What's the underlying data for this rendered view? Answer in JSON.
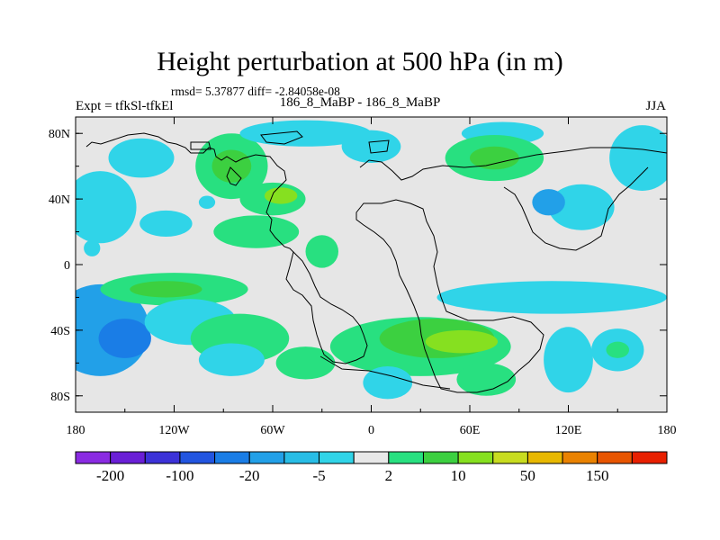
{
  "chart_data": {
    "type": "heatmap",
    "title": "Height perturbation at 500 hPa (in m)",
    "stats_text": "rmsd= 5.37877 diff= -2.84058e-08",
    "subtitle_left": "Expt = tfkSl-tfkEl",
    "subtitle_center": "186_8_MaBP - 186_8_MaBP",
    "subtitle_right": "JJA",
    "xlim": [
      -180,
      180
    ],
    "ylim": [
      -90,
      90
    ],
    "x_ticks": [
      {
        "value": -180,
        "label": "180"
      },
      {
        "value": -120,
        "label": "120W"
      },
      {
        "value": -60,
        "label": "60W"
      },
      {
        "value": 0,
        "label": "0"
      },
      {
        "value": 60,
        "label": "60E"
      },
      {
        "value": 120,
        "label": "120E"
      },
      {
        "value": 180,
        "label": "180"
      }
    ],
    "y_ticks": [
      {
        "value": 80,
        "label": "80N"
      },
      {
        "value": 40,
        "label": "40N"
      },
      {
        "value": 0,
        "label": "0"
      },
      {
        "value": -40,
        "label": "40S"
      },
      {
        "value": -80,
        "label": "80S"
      }
    ],
    "colorbar": {
      "levels": [
        -200,
        -150,
        -100,
        -50,
        -20,
        -10,
        -5,
        -2,
        2,
        5,
        10,
        20,
        50,
        100,
        150,
        200
      ],
      "colors": [
        "#8a2be2",
        "#6a1fd6",
        "#3c32d8",
        "#2255e0",
        "#1a7de6",
        "#22a0e8",
        "#28bde6",
        "#30d4e8",
        "#e8e8e8",
        "#28e080",
        "#3cd040",
        "#86e020",
        "#c8dc20",
        "#e8b800",
        "#ea8200",
        "#e85500",
        "#e82000"
      ],
      "labels": [
        {
          "level": -200,
          "text": "-200"
        },
        {
          "level": -100,
          "text": "-100"
        },
        {
          "level": -20,
          "text": "-20"
        },
        {
          "level": -5,
          "text": "-5"
        },
        {
          "level": 2,
          "text": "2"
        },
        {
          "level": 10,
          "text": "10"
        },
        {
          "level": 50,
          "text": "50"
        },
        {
          "level": 150,
          "text": "150"
        }
      ]
    },
    "field_blobs": [
      {
        "lon": -165,
        "lat": 35,
        "rlon": 22,
        "rlat": 22,
        "value": -4
      },
      {
        "lon": -165,
        "lat": -40,
        "rlon": 30,
        "rlat": 28,
        "value": -12
      },
      {
        "lon": -150,
        "lat": -45,
        "rlon": 16,
        "rlat": 12,
        "value": -25
      },
      {
        "lon": -125,
        "lat": 25,
        "rlon": 16,
        "rlat": 8,
        "value": -4
      },
      {
        "lon": -120,
        "lat": -15,
        "rlon": 45,
        "rlat": 10,
        "value": 4
      },
      {
        "lon": -125,
        "lat": -15,
        "rlon": 22,
        "rlat": 5,
        "value": 7
      },
      {
        "lon": -110,
        "lat": -35,
        "rlon": 28,
        "rlat": 14,
        "value": -4
      },
      {
        "lon": -100,
        "lat": 38,
        "rlon": 5,
        "rlat": 4,
        "value": -4
      },
      {
        "lon": -85,
        "lat": 60,
        "rlon": 22,
        "rlat": 20,
        "value": 4
      },
      {
        "lon": -85,
        "lat": 60,
        "rlon": 12,
        "rlat": 10,
        "value": 8
      },
      {
        "lon": -60,
        "lat": 40,
        "rlon": 20,
        "rlat": 10,
        "value": 4
      },
      {
        "lon": -55,
        "lat": 42,
        "rlon": 10,
        "rlat": 5,
        "value": 12
      },
      {
        "lon": -70,
        "lat": 20,
        "rlon": 26,
        "rlat": 10,
        "value": 4
      },
      {
        "lon": -30,
        "lat": 8,
        "rlon": 10,
        "rlat": 10,
        "value": 4
      },
      {
        "lon": -80,
        "lat": -45,
        "rlon": 30,
        "rlat": 15,
        "value": 4
      },
      {
        "lon": -85,
        "lat": -58,
        "rlon": 20,
        "rlat": 10,
        "value": -4
      },
      {
        "lon": -40,
        "lat": -60,
        "rlon": 18,
        "rlat": 10,
        "value": 4
      },
      {
        "lon": 30,
        "lat": -50,
        "rlon": 55,
        "rlat": 18,
        "value": 4
      },
      {
        "lon": 40,
        "lat": -45,
        "rlon": 35,
        "rlat": 12,
        "value": 9
      },
      {
        "lon": 55,
        "lat": -47,
        "rlon": 22,
        "rlat": 7,
        "value": 14
      },
      {
        "lon": 10,
        "lat": -72,
        "rlon": 15,
        "rlat": 10,
        "value": -4
      },
      {
        "lon": 70,
        "lat": -70,
        "rlon": 18,
        "rlat": 10,
        "value": 4
      },
      {
        "lon": 0,
        "lat": 72,
        "rlon": 18,
        "rlat": 10,
        "value": -4
      },
      {
        "lon": -40,
        "lat": 80,
        "rlon": 40,
        "rlat": 8,
        "value": -4
      },
      {
        "lon": 80,
        "lat": 80,
        "rlon": 25,
        "rlat": 7,
        "value": -4
      },
      {
        "lon": 75,
        "lat": 65,
        "rlon": 30,
        "rlat": 14,
        "value": 4
      },
      {
        "lon": 75,
        "lat": 65,
        "rlon": 15,
        "rlat": 7,
        "value": 8
      },
      {
        "lon": 165,
        "lat": 65,
        "rlon": 20,
        "rlat": 20,
        "value": -4
      },
      {
        "lon": 128,
        "lat": 35,
        "rlon": 20,
        "rlat": 14,
        "value": -4
      },
      {
        "lon": 108,
        "lat": 38,
        "rlon": 10,
        "rlat": 8,
        "value": -15
      },
      {
        "lon": 110,
        "lat": -20,
        "rlon": 70,
        "rlat": 10,
        "value": -4
      },
      {
        "lon": 150,
        "lat": -52,
        "rlon": 16,
        "rlat": 13,
        "value": -4
      },
      {
        "lon": 150,
        "lat": -52,
        "rlon": 7,
        "rlat": 5,
        "value": 4
      },
      {
        "lon": 120,
        "lat": -58,
        "rlon": 15,
        "rlat": 20,
        "value": -4
      },
      {
        "lon": -140,
        "lat": 65,
        "rlon": 20,
        "rlat": 12,
        "value": -4
      },
      {
        "lon": -170,
        "lat": 10,
        "rlon": 5,
        "rlat": 5,
        "value": -4
      }
    ]
  }
}
